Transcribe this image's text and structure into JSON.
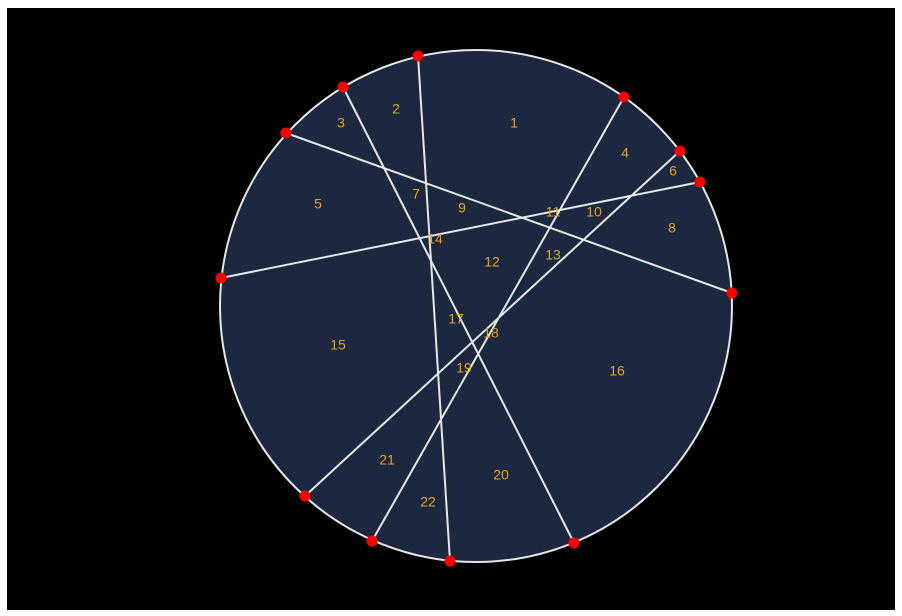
{
  "diagram": {
    "colors": {
      "background": "#000000",
      "disk_fill": "#1c2840",
      "chord_stroke": "#e6e6e6",
      "endpoint": "#ff0000",
      "label": "#e6a21c"
    },
    "regions": [
      "1",
      "2",
      "3",
      "4",
      "5",
      "6",
      "7",
      "8",
      "9",
      "10",
      "11",
      "12",
      "13",
      "14",
      "15",
      "16",
      "17",
      "18",
      "19",
      "20",
      "21",
      "22"
    ]
  }
}
